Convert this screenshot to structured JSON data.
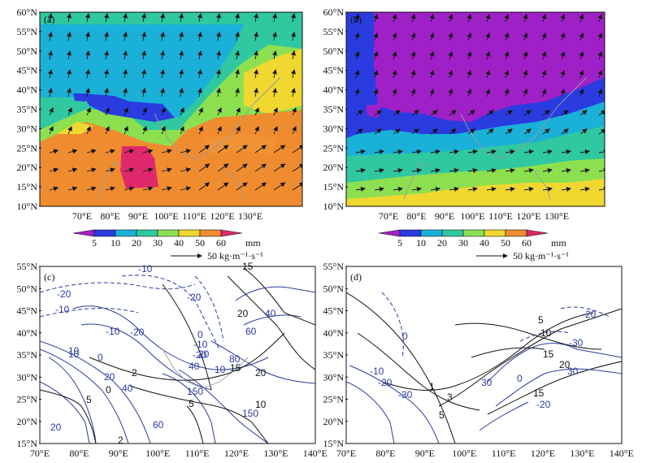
{
  "panels": {
    "a": {
      "label": "(a)",
      "lat_ticks": [
        "10°N",
        "15°N",
        "20°N",
        "25°N",
        "30°N",
        "35°N",
        "40°N",
        "45°N",
        "50°N",
        "55°N",
        "60°N"
      ],
      "lon_ticks": [
        "70°E",
        "80°E",
        "90°E",
        "100°E",
        "110°E",
        "120°E",
        "130°E"
      ]
    },
    "b": {
      "label": "(b)",
      "lat_ticks": [
        "10°N",
        "15°N",
        "20°N",
        "25°N",
        "30°N",
        "35°N",
        "40°N",
        "45°N",
        "50°N",
        "55°N",
        "60°N"
      ],
      "lon_ticks": [
        "70°E",
        "80°E",
        "90°E",
        "100°E",
        "110°E",
        "120°E",
        "130°E"
      ]
    },
    "c": {
      "label": "(c)",
      "lat_ticks": [
        "15°N",
        "20°N",
        "25°N",
        "30°N",
        "35°N",
        "40°N",
        "45°N",
        "50°N",
        "55°N"
      ],
      "lon_ticks": [
        "70°E",
        "80°E",
        "90°E",
        "100°E",
        "110°E",
        "120°E",
        "130°E",
        "140°E"
      ],
      "contour_labels": [
        {
          "t": "-10",
          "c": "blue"
        },
        {
          "t": "15",
          "c": "black"
        },
        {
          "t": "-20",
          "c": "blue"
        },
        {
          "t": "-10",
          "c": "blue"
        },
        {
          "t": "-20",
          "c": "blue"
        },
        {
          "t": "20",
          "c": "black"
        },
        {
          "t": "40",
          "c": "blue"
        },
        {
          "t": "-10",
          "c": "blue"
        },
        {
          "t": "60",
          "c": "blue"
        },
        {
          "t": "0",
          "c": "blue"
        },
        {
          "t": "10",
          "c": "blue"
        },
        {
          "t": "-20",
          "c": "blue"
        },
        {
          "t": "0",
          "c": "blue"
        },
        {
          "t": "-10",
          "c": "blue"
        },
        {
          "t": "-20",
          "c": "blue"
        },
        {
          "t": "20",
          "c": "blue"
        },
        {
          "t": "80",
          "c": "blue"
        },
        {
          "t": "40",
          "c": "blue"
        },
        {
          "t": "10",
          "c": "blue"
        },
        {
          "t": "15",
          "c": "black"
        },
        {
          "t": "20",
          "c": "black"
        },
        {
          "t": "2",
          "c": "black"
        },
        {
          "t": "0",
          "c": "black"
        },
        {
          "t": "40",
          "c": "blue"
        },
        {
          "t": "150",
          "c": "blue"
        },
        {
          "t": "5",
          "c": "black"
        },
        {
          "t": "10",
          "c": "black"
        },
        {
          "t": "5",
          "c": "black"
        },
        {
          "t": "150",
          "c": "blue"
        },
        {
          "t": "60",
          "c": "blue"
        },
        {
          "t": "2",
          "c": "black"
        },
        {
          "t": "20",
          "c": "blue"
        },
        {
          "t": "10",
          "c": "blue"
        },
        {
          "t": "20",
          "c": "blue"
        }
      ]
    },
    "d": {
      "label": "(d)",
      "lat_ticks": [
        "15°N",
        "20°N",
        "25°N",
        "30°N",
        "35°N",
        "40°N",
        "45°N",
        "50°N",
        "55°N"
      ],
      "lon_ticks": [
        "70°E",
        "80°E",
        "90°E",
        "100°E",
        "110°E",
        "120°E",
        "130°E",
        "140°E"
      ],
      "contour_labels": [
        {
          "t": "5",
          "c": "black"
        },
        {
          "t": "-20",
          "c": "blue"
        },
        {
          "t": "0",
          "c": "blue"
        },
        {
          "t": "10",
          "c": "black"
        },
        {
          "t": "-30",
          "c": "blue"
        },
        {
          "t": "15",
          "c": "black"
        },
        {
          "t": "20",
          "c": "black"
        },
        {
          "t": "30",
          "c": "blue"
        },
        {
          "t": "-10",
          "c": "blue"
        },
        {
          "t": "-20",
          "c": "blue"
        },
        {
          "t": "-30",
          "c": "blue"
        },
        {
          "t": "1",
          "c": "black"
        },
        {
          "t": "3",
          "c": "black"
        },
        {
          "t": "30",
          "c": "blue"
        },
        {
          "t": "0",
          "c": "blue"
        },
        {
          "t": "15",
          "c": "black"
        },
        {
          "t": "-20",
          "c": "blue"
        },
        {
          "t": "5",
          "c": "black"
        }
      ]
    }
  },
  "colorbar": {
    "ticks": [
      "5",
      "10",
      "20",
      "30",
      "40",
      "50",
      "60"
    ],
    "unit": "mm",
    "colors": [
      "#a020c8",
      "#2a3ce0",
      "#1ab0d8",
      "#30c8a0",
      "#8ce050",
      "#f0d830",
      "#f08c30",
      "#e0286c"
    ],
    "vector_ref": "50 kg·m⁻¹·s⁻¹"
  },
  "colors": {
    "contour_blue": "#2a3aa0",
    "contour_black": "#111111"
  }
}
